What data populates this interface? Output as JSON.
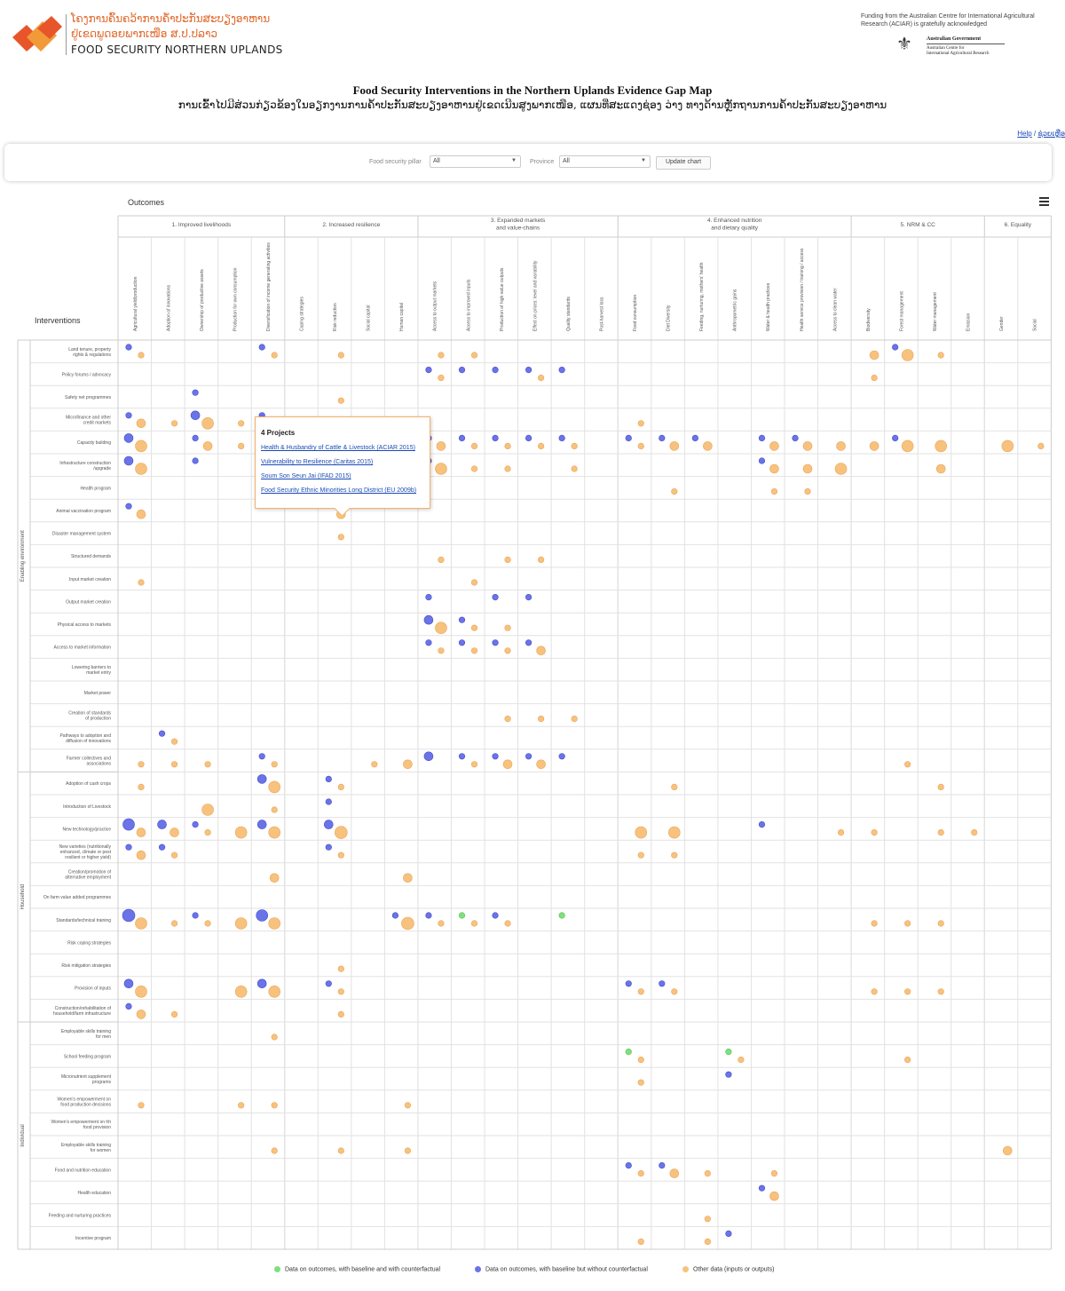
{
  "header": {
    "logo_lao_line1": "ໂຄງການຄົ້ນຄວ້າການຄ້ຳປະກັນສະບຽງອາຫານ",
    "logo_lao_line2": "ຢູ່ເຂດພູດອຍພາກເໜືອ ສ.ປ.ປລາວ",
    "logo_english": "FOOD SECURITY NORTHERN UPLANDS",
    "funding_text": "Funding from the Australian Centre for International Agricultural Research (ACIAR) is gratefully acknowledged",
    "gov_line1": "Australian Government",
    "gov_line2": "Australian Centre for",
    "gov_line3": "International Agricultural Research"
  },
  "title": "Food Security Interventions in the Northern Uplands Evidence Gap Map",
  "subtitle": "ການເຂົ້າໄປມີສ່ວນກ່ຽວຂ້ອງໃນອຽກງານການຄ້ຳປະກັນສະບຽງອາຫານຢູ່ເຂດເນີນສູງພາກເໜືອ, ແຜນທີ່ສະແດງຊ່ອງ ວ່າງ ທາງດ້ານຫຼັກຖານການຄ້ຳປະກັນສະບຽງອາຫານ",
  "help": {
    "help_label": "Help",
    "sep": " / ",
    "lao_label": "ຊ່ວຍເຫຼືອ"
  },
  "filters": {
    "pillar_label": "Food security pillar",
    "pillar_value": "All",
    "province_label": "Province",
    "province_value": "All",
    "update_button": "Update chart"
  },
  "tooltip": {
    "title": "4 Projects",
    "links": [
      "Health & Husbandry of Cattle & Livestock (ACIAR 2015)",
      "Vulnerability to Resilience (Caritas 2015)",
      "Soum Son Seun Jai (IFAD 2015)",
      "Food Security Ethnic Minorities Long District (EU 2009b)"
    ]
  },
  "colors": {
    "green": "#7ee07e",
    "blue": "#6a73e8",
    "orange": "#f7c27e"
  },
  "chart_data": {
    "type": "scatter",
    "title": "Outcomes",
    "ylabel": "Interventions",
    "groups": [
      {
        "label": "1. Improved livelihoods",
        "span": 5
      },
      {
        "label": "2. Increased resilience",
        "span": 4
      },
      {
        "label": "3. Expanded markets\nand value-chains",
        "span": 6
      },
      {
        "label": "4. Enhanced nutrition\nand dietary quality",
        "span": 7
      },
      {
        "label": "5. NRM & CC",
        "span": 4
      },
      {
        "label": "6. Equality",
        "span": 2
      }
    ],
    "columns": [
      "Agricultural yield/production",
      "Adoption of innovations",
      "Ownership of productive assets",
      "Production for own consumption",
      "Diversification of income generating activities",
      "Coping strategies",
      "Risk reduction",
      "Social capital",
      "Human capital",
      "Access to output markets",
      "Access to improved inputs",
      "Production of high value outputs",
      "Effect on prices: level and variability",
      "Quality standards",
      "Post-harvest loss",
      "Food consumption",
      "Diet Diversity",
      "Feeding, nurturing, mothers' health",
      "Anthropometric gains",
      "Water & health practices",
      "Health service provision / training / access",
      "Access to clean water",
      "Biodiversity",
      "Forest management",
      "Water management",
      "Emission",
      "Gender",
      "Social"
    ],
    "row_groups": [
      {
        "label": "Enabling environment",
        "span": 19
      },
      {
        "label": "Household",
        "span": 11
      },
      {
        "label": "Individual",
        "span": 10
      }
    ],
    "rows": [
      "Land tenure, property\nrights & regulations",
      "Policy forums / advocacy",
      "Safety net programmes",
      "Microfinance and other\ncredit markets",
      "Capacity building",
      "Infrastructure construction\n/upgrade",
      "Health program",
      "Animal vaccination program",
      "Disaster management system",
      "Structured demands",
      "Input market creation",
      "Output market creation",
      "Physical access to markets",
      "Access to market information",
      "Lowering barriers to\nmarket entry",
      "Market power",
      "Creation of standards\nof production",
      "Pathways to adoption and\ndiffusion of innovations",
      "Farmer collectives and\nassociations",
      "Adoption of cash crops",
      "Introduction of Livestock",
      "New technology/practice",
      "New varieties (nutritionally\nenhanced, climate or pest\nresilient or higher yield)",
      "Creation/promotion of\nalternative employment",
      "On farm value added programmes",
      "Standards/technical training",
      "Risk coping strategies",
      "Risk mitigation strategies",
      "Provision of inputs",
      "Construction/rehabilitation of\nhousehold/farm infrastructure",
      "Employable skills training\nfor men",
      "School feeding program",
      "Micronutrient supplement\nprograms",
      "Women's empowerment on\nfood production decisions",
      "Women's empowerment on hh\nfood provision",
      "Employable skills training\nfor women",
      "Food and nutrition education",
      "Health education",
      "Feeding and nurturing practices",
      "Incentive program"
    ],
    "points": [
      [
        0,
        0,
        "b",
        1
      ],
      [
        0,
        0,
        "o",
        1
      ],
      [
        0,
        4,
        "b",
        1
      ],
      [
        0,
        4,
        "o",
        1
      ],
      [
        0,
        6,
        "o",
        1
      ],
      [
        0,
        9,
        "o",
        1
      ],
      [
        0,
        10,
        "o",
        1
      ],
      [
        0,
        22,
        "o",
        2
      ],
      [
        0,
        23,
        "b",
        1
      ],
      [
        0,
        23,
        "o",
        3
      ],
      [
        0,
        24,
        "o",
        1
      ],
      [
        1,
        9,
        "b",
        1
      ],
      [
        1,
        9,
        "o",
        1
      ],
      [
        1,
        10,
        "b",
        1
      ],
      [
        1,
        11,
        "b",
        1
      ],
      [
        1,
        12,
        "b",
        1
      ],
      [
        1,
        12,
        "o",
        1
      ],
      [
        1,
        13,
        "b",
        1
      ],
      [
        1,
        22,
        "o",
        1
      ],
      [
        2,
        2,
        "b",
        1
      ],
      [
        2,
        6,
        "o",
        1
      ],
      [
        3,
        0,
        "b",
        1
      ],
      [
        3,
        0,
        "o",
        2
      ],
      [
        3,
        1,
        "o",
        1
      ],
      [
        3,
        2,
        "b",
        2
      ],
      [
        3,
        2,
        "o",
        3
      ],
      [
        3,
        3,
        "o",
        1
      ],
      [
        3,
        4,
        "b",
        1
      ],
      [
        3,
        15,
        "o",
        1
      ],
      [
        4,
        0,
        "b",
        2
      ],
      [
        4,
        0,
        "o",
        3
      ],
      [
        4,
        2,
        "b",
        1
      ],
      [
        4,
        2,
        "o",
        2
      ],
      [
        4,
        3,
        "o",
        1
      ],
      [
        4,
        9,
        "b",
        1
      ],
      [
        4,
        9,
        "o",
        2
      ],
      [
        4,
        10,
        "b",
        1
      ],
      [
        4,
        10,
        "o",
        1
      ],
      [
        4,
        11,
        "b",
        1
      ],
      [
        4,
        11,
        "o",
        1
      ],
      [
        4,
        12,
        "b",
        1
      ],
      [
        4,
        12,
        "o",
        1
      ],
      [
        4,
        13,
        "b",
        1
      ],
      [
        4,
        13,
        "o",
        1
      ],
      [
        4,
        15,
        "b",
        1
      ],
      [
        4,
        15,
        "o",
        1
      ],
      [
        4,
        16,
        "b",
        1
      ],
      [
        4,
        16,
        "o",
        2
      ],
      [
        4,
        17,
        "b",
        1
      ],
      [
        4,
        17,
        "o",
        2
      ],
      [
        4,
        19,
        "b",
        1
      ],
      [
        4,
        19,
        "o",
        2
      ],
      [
        4,
        20,
        "b",
        1
      ],
      [
        4,
        20,
        "o",
        2
      ],
      [
        4,
        21,
        "o",
        2
      ],
      [
        4,
        22,
        "o",
        2
      ],
      [
        4,
        23,
        "b",
        1
      ],
      [
        4,
        23,
        "o",
        3
      ],
      [
        4,
        24,
        "o",
        3
      ],
      [
        4,
        26,
        "o",
        3
      ],
      [
        4,
        27,
        "o",
        1
      ],
      [
        5,
        0,
        "b",
        2
      ],
      [
        5,
        0,
        "o",
        3
      ],
      [
        5,
        2,
        "b",
        1
      ],
      [
        5,
        9,
        "b",
        1
      ],
      [
        5,
        9,
        "o",
        3
      ],
      [
        5,
        10,
        "o",
        1
      ],
      [
        5,
        11,
        "o",
        1
      ],
      [
        5,
        13,
        "o",
        1
      ],
      [
        5,
        19,
        "b",
        1
      ],
      [
        5,
        19,
        "o",
        2
      ],
      [
        5,
        20,
        "o",
        2
      ],
      [
        5,
        21,
        "o",
        3
      ],
      [
        5,
        24,
        "o",
        2
      ],
      [
        6,
        16,
        "o",
        1
      ],
      [
        6,
        19,
        "o",
        1
      ],
      [
        6,
        20,
        "o",
        1
      ],
      [
        7,
        0,
        "b",
        1
      ],
      [
        7,
        0,
        "o",
        2
      ],
      [
        7,
        6,
        "o",
        2
      ],
      [
        8,
        6,
        "o",
        1
      ],
      [
        9,
        9,
        "o",
        1
      ],
      [
        9,
        11,
        "o",
        1
      ],
      [
        9,
        12,
        "o",
        1
      ],
      [
        10,
        0,
        "o",
        1
      ],
      [
        10,
        10,
        "o",
        1
      ],
      [
        11,
        9,
        "b",
        1
      ],
      [
        11,
        11,
        "b",
        1
      ],
      [
        11,
        12,
        "b",
        1
      ],
      [
        12,
        9,
        "b",
        2
      ],
      [
        12,
        9,
        "o",
        3
      ],
      [
        12,
        10,
        "b",
        1
      ],
      [
        12,
        10,
        "o",
        1
      ],
      [
        12,
        11,
        "o",
        1
      ],
      [
        13,
        9,
        "b",
        1
      ],
      [
        13,
        9,
        "o",
        1
      ],
      [
        13,
        10,
        "b",
        1
      ],
      [
        13,
        10,
        "o",
        1
      ],
      [
        13,
        11,
        "b",
        1
      ],
      [
        13,
        11,
        "o",
        1
      ],
      [
        13,
        12,
        "b",
        1
      ],
      [
        13,
        12,
        "o",
        2
      ],
      [
        16,
        11,
        "o",
        1
      ],
      [
        16,
        12,
        "o",
        1
      ],
      [
        16,
        13,
        "o",
        1
      ],
      [
        17,
        1,
        "b",
        1
      ],
      [
        17,
        1,
        "o",
        1
      ],
      [
        18,
        0,
        "o",
        1
      ],
      [
        18,
        1,
        "o",
        1
      ],
      [
        18,
        2,
        "o",
        1
      ],
      [
        18,
        4,
        "b",
        1
      ],
      [
        18,
        4,
        "o",
        1
      ],
      [
        18,
        7,
        "o",
        1
      ],
      [
        18,
        8,
        "o",
        2
      ],
      [
        18,
        9,
        "b",
        2
      ],
      [
        18,
        10,
        "b",
        1
      ],
      [
        18,
        10,
        "o",
        1
      ],
      [
        18,
        11,
        "b",
        1
      ],
      [
        18,
        11,
        "o",
        2
      ],
      [
        18,
        12,
        "b",
        1
      ],
      [
        18,
        12,
        "o",
        2
      ],
      [
        18,
        13,
        "b",
        1
      ],
      [
        18,
        23,
        "o",
        1
      ],
      [
        19,
        0,
        "o",
        1
      ],
      [
        19,
        4,
        "b",
        2
      ],
      [
        19,
        4,
        "o",
        3
      ],
      [
        19,
        6,
        "b",
        1
      ],
      [
        19,
        6,
        "o",
        1
      ],
      [
        19,
        16,
        "o",
        1
      ],
      [
        19,
        24,
        "o",
        1
      ],
      [
        20,
        2,
        "o",
        3
      ],
      [
        20,
        4,
        "o",
        1
      ],
      [
        20,
        6,
        "b",
        1
      ],
      [
        21,
        0,
        "b",
        3
      ],
      [
        21,
        0,
        "o",
        2
      ],
      [
        21,
        1,
        "b",
        2
      ],
      [
        21,
        1,
        "o",
        2
      ],
      [
        21,
        2,
        "b",
        1
      ],
      [
        21,
        2,
        "o",
        1
      ],
      [
        21,
        3,
        "o",
        3
      ],
      [
        21,
        4,
        "b",
        2
      ],
      [
        21,
        4,
        "o",
        3
      ],
      [
        21,
        6,
        "b",
        2
      ],
      [
        21,
        6,
        "o",
        4
      ],
      [
        21,
        15,
        "o",
        3
      ],
      [
        21,
        16,
        "o",
        3
      ],
      [
        21,
        19,
        "b",
        1
      ],
      [
        21,
        21,
        "o",
        1
      ],
      [
        21,
        22,
        "o",
        1
      ],
      [
        21,
        24,
        "o",
        1
      ],
      [
        21,
        25,
        "o",
        1
      ],
      [
        22,
        0,
        "b",
        1
      ],
      [
        22,
        0,
        "o",
        2
      ],
      [
        22,
        1,
        "b",
        1
      ],
      [
        22,
        1,
        "o",
        1
      ],
      [
        22,
        6,
        "b",
        1
      ],
      [
        22,
        6,
        "o",
        1
      ],
      [
        22,
        15,
        "o",
        1
      ],
      [
        22,
        16,
        "o",
        1
      ],
      [
        23,
        4,
        "o",
        2
      ],
      [
        23,
        8,
        "o",
        2
      ],
      [
        25,
        0,
        "b",
        4
      ],
      [
        25,
        0,
        "o",
        3
      ],
      [
        25,
        1,
        "o",
        1
      ],
      [
        25,
        2,
        "b",
        1
      ],
      [
        25,
        2,
        "o",
        1
      ],
      [
        25,
        3,
        "o",
        3
      ],
      [
        25,
        4,
        "b",
        3
      ],
      [
        25,
        4,
        "o",
        3
      ],
      [
        25,
        8,
        "b",
        1
      ],
      [
        25,
        8,
        "o",
        4
      ],
      [
        25,
        9,
        "b",
        1
      ],
      [
        25,
        9,
        "o",
        1
      ],
      [
        25,
        10,
        "g",
        1
      ],
      [
        25,
        10,
        "o",
        1
      ],
      [
        25,
        11,
        "b",
        1
      ],
      [
        25,
        11,
        "o",
        1
      ],
      [
        25,
        13,
        "g",
        1
      ],
      [
        25,
        22,
        "o",
        1
      ],
      [
        25,
        23,
        "o",
        1
      ],
      [
        25,
        24,
        "o",
        1
      ],
      [
        27,
        6,
        "o",
        1
      ],
      [
        28,
        0,
        "b",
        2
      ],
      [
        28,
        0,
        "o",
        3
      ],
      [
        28,
        3,
        "o",
        3
      ],
      [
        28,
        4,
        "b",
        2
      ],
      [
        28,
        4,
        "o",
        3
      ],
      [
        28,
        6,
        "b",
        1
      ],
      [
        28,
        6,
        "o",
        1
      ],
      [
        28,
        15,
        "b",
        1
      ],
      [
        28,
        15,
        "o",
        1
      ],
      [
        28,
        16,
        "b",
        1
      ],
      [
        28,
        16,
        "o",
        1
      ],
      [
        28,
        22,
        "o",
        1
      ],
      [
        28,
        23,
        "o",
        1
      ],
      [
        28,
        24,
        "o",
        1
      ],
      [
        29,
        0,
        "b",
        1
      ],
      [
        29,
        0,
        "o",
        2
      ],
      [
        29,
        1,
        "o",
        1
      ],
      [
        29,
        6,
        "o",
        1
      ],
      [
        30,
        4,
        "o",
        1
      ],
      [
        31,
        15,
        "g",
        1
      ],
      [
        31,
        15,
        "o",
        1
      ],
      [
        31,
        18,
        "g",
        1
      ],
      [
        31,
        18,
        "o",
        1
      ],
      [
        31,
        23,
        "o",
        1
      ],
      [
        32,
        15,
        "o",
        1
      ],
      [
        32,
        18,
        "b",
        1
      ],
      [
        33,
        0,
        "o",
        1
      ],
      [
        33,
        3,
        "o",
        1
      ],
      [
        33,
        4,
        "o",
        1
      ],
      [
        33,
        8,
        "o",
        1
      ],
      [
        35,
        4,
        "o",
        1
      ],
      [
        35,
        6,
        "o",
        1
      ],
      [
        35,
        8,
        "o",
        1
      ],
      [
        35,
        26,
        "o",
        2
      ],
      [
        36,
        15,
        "b",
        1
      ],
      [
        36,
        15,
        "o",
        1
      ],
      [
        36,
        16,
        "b",
        1
      ],
      [
        36,
        16,
        "o",
        2
      ],
      [
        36,
        17,
        "o",
        1
      ],
      [
        36,
        19,
        "o",
        1
      ],
      [
        37,
        19,
        "b",
        1
      ],
      [
        37,
        19,
        "o",
        2
      ],
      [
        38,
        17,
        "o",
        1
      ],
      [
        39,
        15,
        "o",
        1
      ],
      [
        39,
        17,
        "o",
        1
      ],
      [
        39,
        18,
        "b",
        1
      ]
    ],
    "legend": [
      {
        "key": "g",
        "label": "Data on outcomes, with baseline and with counterfactual"
      },
      {
        "key": "b",
        "label": "Data on outcomes, with baseline but without counterfactual"
      },
      {
        "key": "o",
        "label": "Other data (inputs or outputs)"
      }
    ]
  }
}
